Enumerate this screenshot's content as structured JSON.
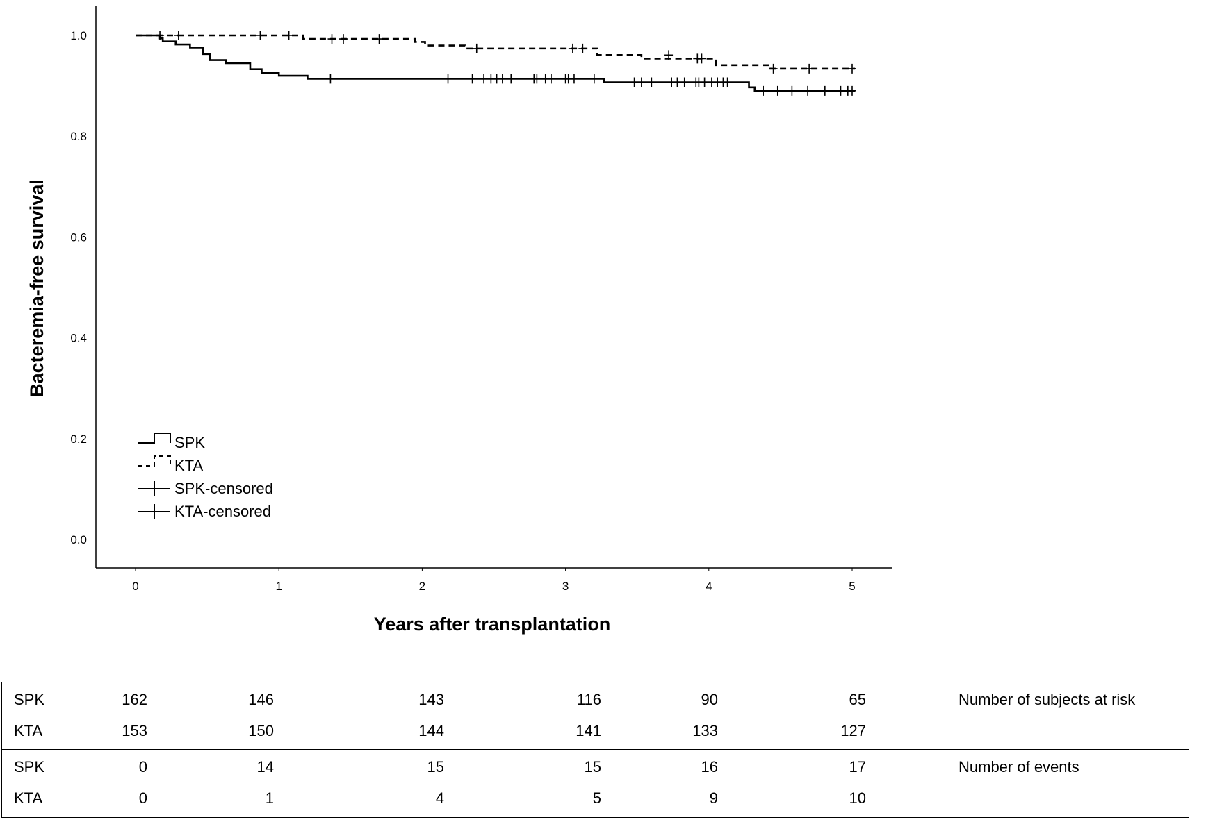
{
  "chart_data": {
    "type": "line",
    "title": "",
    "xlabel": "Years after transplantation",
    "ylabel": "Bacteremia-free survival",
    "xlim": [
      -0.25,
      5.3
    ],
    "ylim": [
      -0.05,
      1.06
    ],
    "x_ticks": [
      0,
      1,
      2,
      3,
      4,
      5
    ],
    "x_tick_labels": [
      "0",
      "1",
      "2",
      "3",
      "4",
      "5"
    ],
    "y_ticks": [
      0.0,
      0.2,
      0.4,
      0.6,
      0.8,
      1.0
    ],
    "y_tick_labels": [
      "0.0",
      "0.2",
      "0.4",
      "0.6",
      "0.8",
      "1.0"
    ],
    "grid": false,
    "legend_position": "bottom-left",
    "legend": [
      {
        "label": "SPK",
        "style": "solid-step"
      },
      {
        "label": "KTA",
        "style": "dashed-step"
      },
      {
        "label": "SPK-censored",
        "style": "censor-mark"
      },
      {
        "label": "KTA-censored",
        "style": "censor-mark"
      }
    ],
    "series": [
      {
        "name": "SPK",
        "line_style": "solid",
        "steps": [
          [
            0,
            1.0
          ],
          [
            0.17,
            0.994
          ],
          [
            0.19,
            0.988
          ],
          [
            0.28,
            0.982
          ],
          [
            0.38,
            0.976
          ],
          [
            0.47,
            0.963
          ],
          [
            0.52,
            0.951
          ],
          [
            0.63,
            0.945
          ],
          [
            0.8,
            0.933
          ],
          [
            0.88,
            0.926
          ],
          [
            1.0,
            0.92
          ],
          [
            1.2,
            0.914
          ],
          [
            3.27,
            0.907
          ],
          [
            4.28,
            0.897
          ],
          [
            4.32,
            0.89
          ],
          [
            5.02,
            0.89
          ]
        ],
        "censored": [
          [
            1.36,
            0.914
          ],
          [
            2.18,
            0.914
          ],
          [
            2.35,
            0.914
          ],
          [
            2.43,
            0.914
          ],
          [
            2.48,
            0.914
          ],
          [
            2.52,
            0.914
          ],
          [
            2.56,
            0.914
          ],
          [
            2.62,
            0.914
          ],
          [
            2.78,
            0.914
          ],
          [
            2.8,
            0.914
          ],
          [
            2.86,
            0.914
          ],
          [
            2.9,
            0.914
          ],
          [
            3.0,
            0.914
          ],
          [
            3.02,
            0.914
          ],
          [
            3.06,
            0.914
          ],
          [
            3.2,
            0.914
          ],
          [
            3.48,
            0.907
          ],
          [
            3.53,
            0.907
          ],
          [
            3.6,
            0.907
          ],
          [
            3.74,
            0.907
          ],
          [
            3.78,
            0.907
          ],
          [
            3.83,
            0.907
          ],
          [
            3.91,
            0.907
          ],
          [
            3.93,
            0.907
          ],
          [
            3.97,
            0.907
          ],
          [
            4.02,
            0.907
          ],
          [
            4.06,
            0.907
          ],
          [
            4.1,
            0.907
          ],
          [
            4.13,
            0.907
          ],
          [
            4.38,
            0.89
          ],
          [
            4.48,
            0.89
          ],
          [
            4.58,
            0.89
          ],
          [
            4.69,
            0.89
          ],
          [
            4.81,
            0.89
          ],
          [
            4.92,
            0.89
          ],
          [
            4.97,
            0.89
          ],
          [
            5.0,
            0.89
          ]
        ]
      },
      {
        "name": "KTA",
        "line_style": "dashed",
        "steps": [
          [
            0,
            1.0
          ],
          [
            1.17,
            0.993
          ],
          [
            1.95,
            0.987
          ],
          [
            2.02,
            0.98
          ],
          [
            2.3,
            0.974
          ],
          [
            3.22,
            0.961
          ],
          [
            3.53,
            0.954
          ],
          [
            4.05,
            0.941
          ],
          [
            4.43,
            0.934
          ],
          [
            5.02,
            0.934
          ]
        ],
        "censored": [
          [
            0.17,
            1.0
          ],
          [
            0.3,
            1.0
          ],
          [
            0.87,
            1.0
          ],
          [
            1.07,
            1.0
          ],
          [
            1.37,
            0.993
          ],
          [
            1.45,
            0.993
          ],
          [
            1.7,
            0.993
          ],
          [
            2.38,
            0.974
          ],
          [
            3.05,
            0.974
          ],
          [
            3.12,
            0.974
          ],
          [
            3.72,
            0.961
          ],
          [
            3.92,
            0.954
          ],
          [
            3.95,
            0.954
          ],
          [
            4.45,
            0.934
          ],
          [
            4.7,
            0.934
          ],
          [
            5.0,
            0.934
          ]
        ]
      }
    ]
  },
  "table": {
    "groups": [
      {
        "description": "Number of subjects at risk",
        "rows": [
          {
            "name": "SPK",
            "values": [
              "162",
              "146",
              "143",
              "116",
              "90",
              "65"
            ]
          },
          {
            "name": "KTA",
            "values": [
              "153",
              "150",
              "144",
              "141",
              "133",
              "127"
            ]
          }
        ]
      },
      {
        "description": "Number of events",
        "rows": [
          {
            "name": "SPK",
            "values": [
              "0",
              "14",
              "15",
              "15",
              "16",
              "17"
            ]
          },
          {
            "name": "KTA",
            "values": [
              "0",
              "1",
              "4",
              "5",
              "9",
              "10"
            ]
          }
        ]
      }
    ]
  }
}
